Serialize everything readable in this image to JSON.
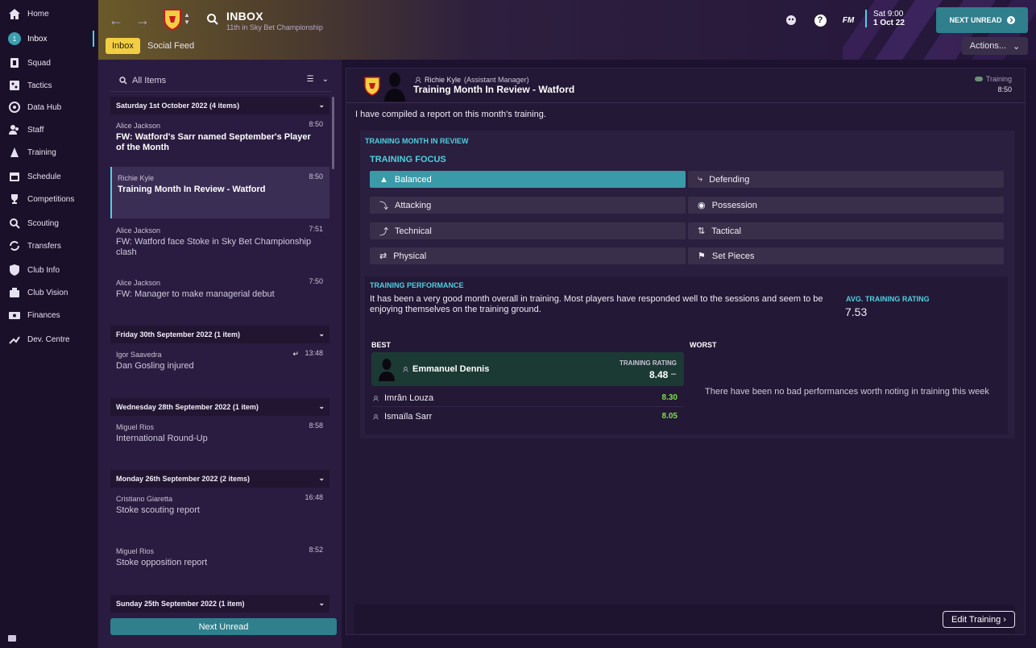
{
  "sidebar": {
    "items": [
      {
        "label": "Home",
        "icon": "home-icon"
      },
      {
        "label": "Inbox",
        "icon": "inbox-icon",
        "badge": "1",
        "active": true
      },
      {
        "label": "Squad",
        "icon": "squad-icon"
      },
      {
        "label": "Tactics",
        "icon": "tactics-icon"
      },
      {
        "label": "Data Hub",
        "icon": "data-hub-icon"
      },
      {
        "label": "Staff",
        "icon": "staff-icon"
      },
      {
        "label": "Training",
        "icon": "training-icon"
      },
      {
        "label": "Schedule",
        "icon": "calendar-icon"
      },
      {
        "label": "Competitions",
        "icon": "trophy-icon"
      },
      {
        "label": "Scouting",
        "icon": "scouting-icon"
      },
      {
        "label": "Transfers",
        "icon": "transfers-icon"
      },
      {
        "label": "Club Info",
        "icon": "shield-icon"
      },
      {
        "label": "Club Vision",
        "icon": "vision-icon"
      },
      {
        "label": "Finances",
        "icon": "finances-icon"
      },
      {
        "label": "Dev. Centre",
        "icon": "dev-centre-icon"
      }
    ]
  },
  "header": {
    "title": "INBOX",
    "subtitle": "11th in Sky Bet Championship",
    "tabs": [
      "Inbox",
      "Social Feed"
    ],
    "date_time": "Sat 9:00",
    "date": "1 Oct 22",
    "fm": "FM",
    "help": "?",
    "next_unread": "NEXT UNREAD",
    "actions": "Actions..."
  },
  "list": {
    "search_placeholder": "All Items",
    "groups": [
      {
        "title": "Saturday 1st October 2022 (4 items)"
      },
      {
        "title": "Friday 30th September 2022 (1 item)"
      },
      {
        "title": "Wednesday 28th September 2022 (1 item)"
      },
      {
        "title": "Monday 26th September 2022 (2 items)"
      },
      {
        "title": "Sunday 25th September 2022 (1 item)"
      }
    ],
    "items": [
      {
        "sender": "Alice Jackson",
        "time": "8:50",
        "subject": "FW: Watford's Sarr named September's Player of the Month",
        "bold": true
      },
      {
        "sender": "Richie Kyle",
        "time": "8:50",
        "subject": "Training Month In Review - Watford",
        "bold": true
      },
      {
        "sender": "Alice Jackson",
        "time": "7:51",
        "subject": "FW: Watford face Stoke in Sky Bet Championship clash",
        "bold": false
      },
      {
        "sender": "Alice Jackson",
        "time": "7:50",
        "subject": "FW: Manager to make managerial debut",
        "bold": false
      },
      {
        "sender": "Igor Saavedra",
        "time": "13:48",
        "subject": "Dan Gosling injured",
        "bold": false
      },
      {
        "sender": "Miguel Rios",
        "time": "8:58",
        "subject": "International Round-Up",
        "bold": false
      },
      {
        "sender": "Cristiano Giaretta",
        "time": "16:48",
        "subject": "Stoke scouting report",
        "bold": false
      },
      {
        "sender": "Miguel Rios",
        "time": "8:52",
        "subject": "Stoke opposition report",
        "bold": false
      }
    ],
    "next_unread": "Next Unread"
  },
  "message": {
    "from": "Richie Kyle",
    "role": "(Assistant Manager)",
    "title": "Training Month In Review - Watford",
    "category": "Training",
    "time": "8:50",
    "intro": "I have compiled a report on this month's training.",
    "report_heading": "TRAINING MONTH IN REVIEW",
    "focus_heading": "TRAINING FOCUS",
    "focus": [
      {
        "label": "Balanced",
        "selected": true
      },
      {
        "label": "Defending",
        "selected": false
      },
      {
        "label": "Attacking",
        "selected": false
      },
      {
        "label": "Possession",
        "selected": false
      },
      {
        "label": "Technical",
        "selected": false
      },
      {
        "label": "Tactical",
        "selected": false
      },
      {
        "label": "Physical",
        "selected": false
      },
      {
        "label": "Set Pieces",
        "selected": false
      }
    ],
    "performance_heading": "TRAINING PERFORMANCE",
    "performance_text": "It has been a very good month overall in training. Most players have responded well to the sessions and seem to be enjoying themselves on the training ground.",
    "avg_label": "AVG. TRAINING RATING",
    "avg_value": "7.53",
    "best_label": "BEST",
    "worst_label": "WORST",
    "best_player": {
      "name": "Emmanuel Dennis",
      "rating_label": "TRAINING RATING",
      "rating": "8.48",
      "trend": "–"
    },
    "others": [
      {
        "name": "Imrân Louza",
        "rating": "8.30"
      },
      {
        "name": "Ismaïla Sarr",
        "rating": "8.05"
      }
    ],
    "worst_message": "There have been no bad performances worth noting in training this week",
    "edit_button": "Edit Training"
  },
  "colors": {
    "accent": "#4fd0e0",
    "teal_button": "#2f7f8c",
    "tab_yellow": "#f2cf42",
    "rating_green": "#7ee046"
  }
}
